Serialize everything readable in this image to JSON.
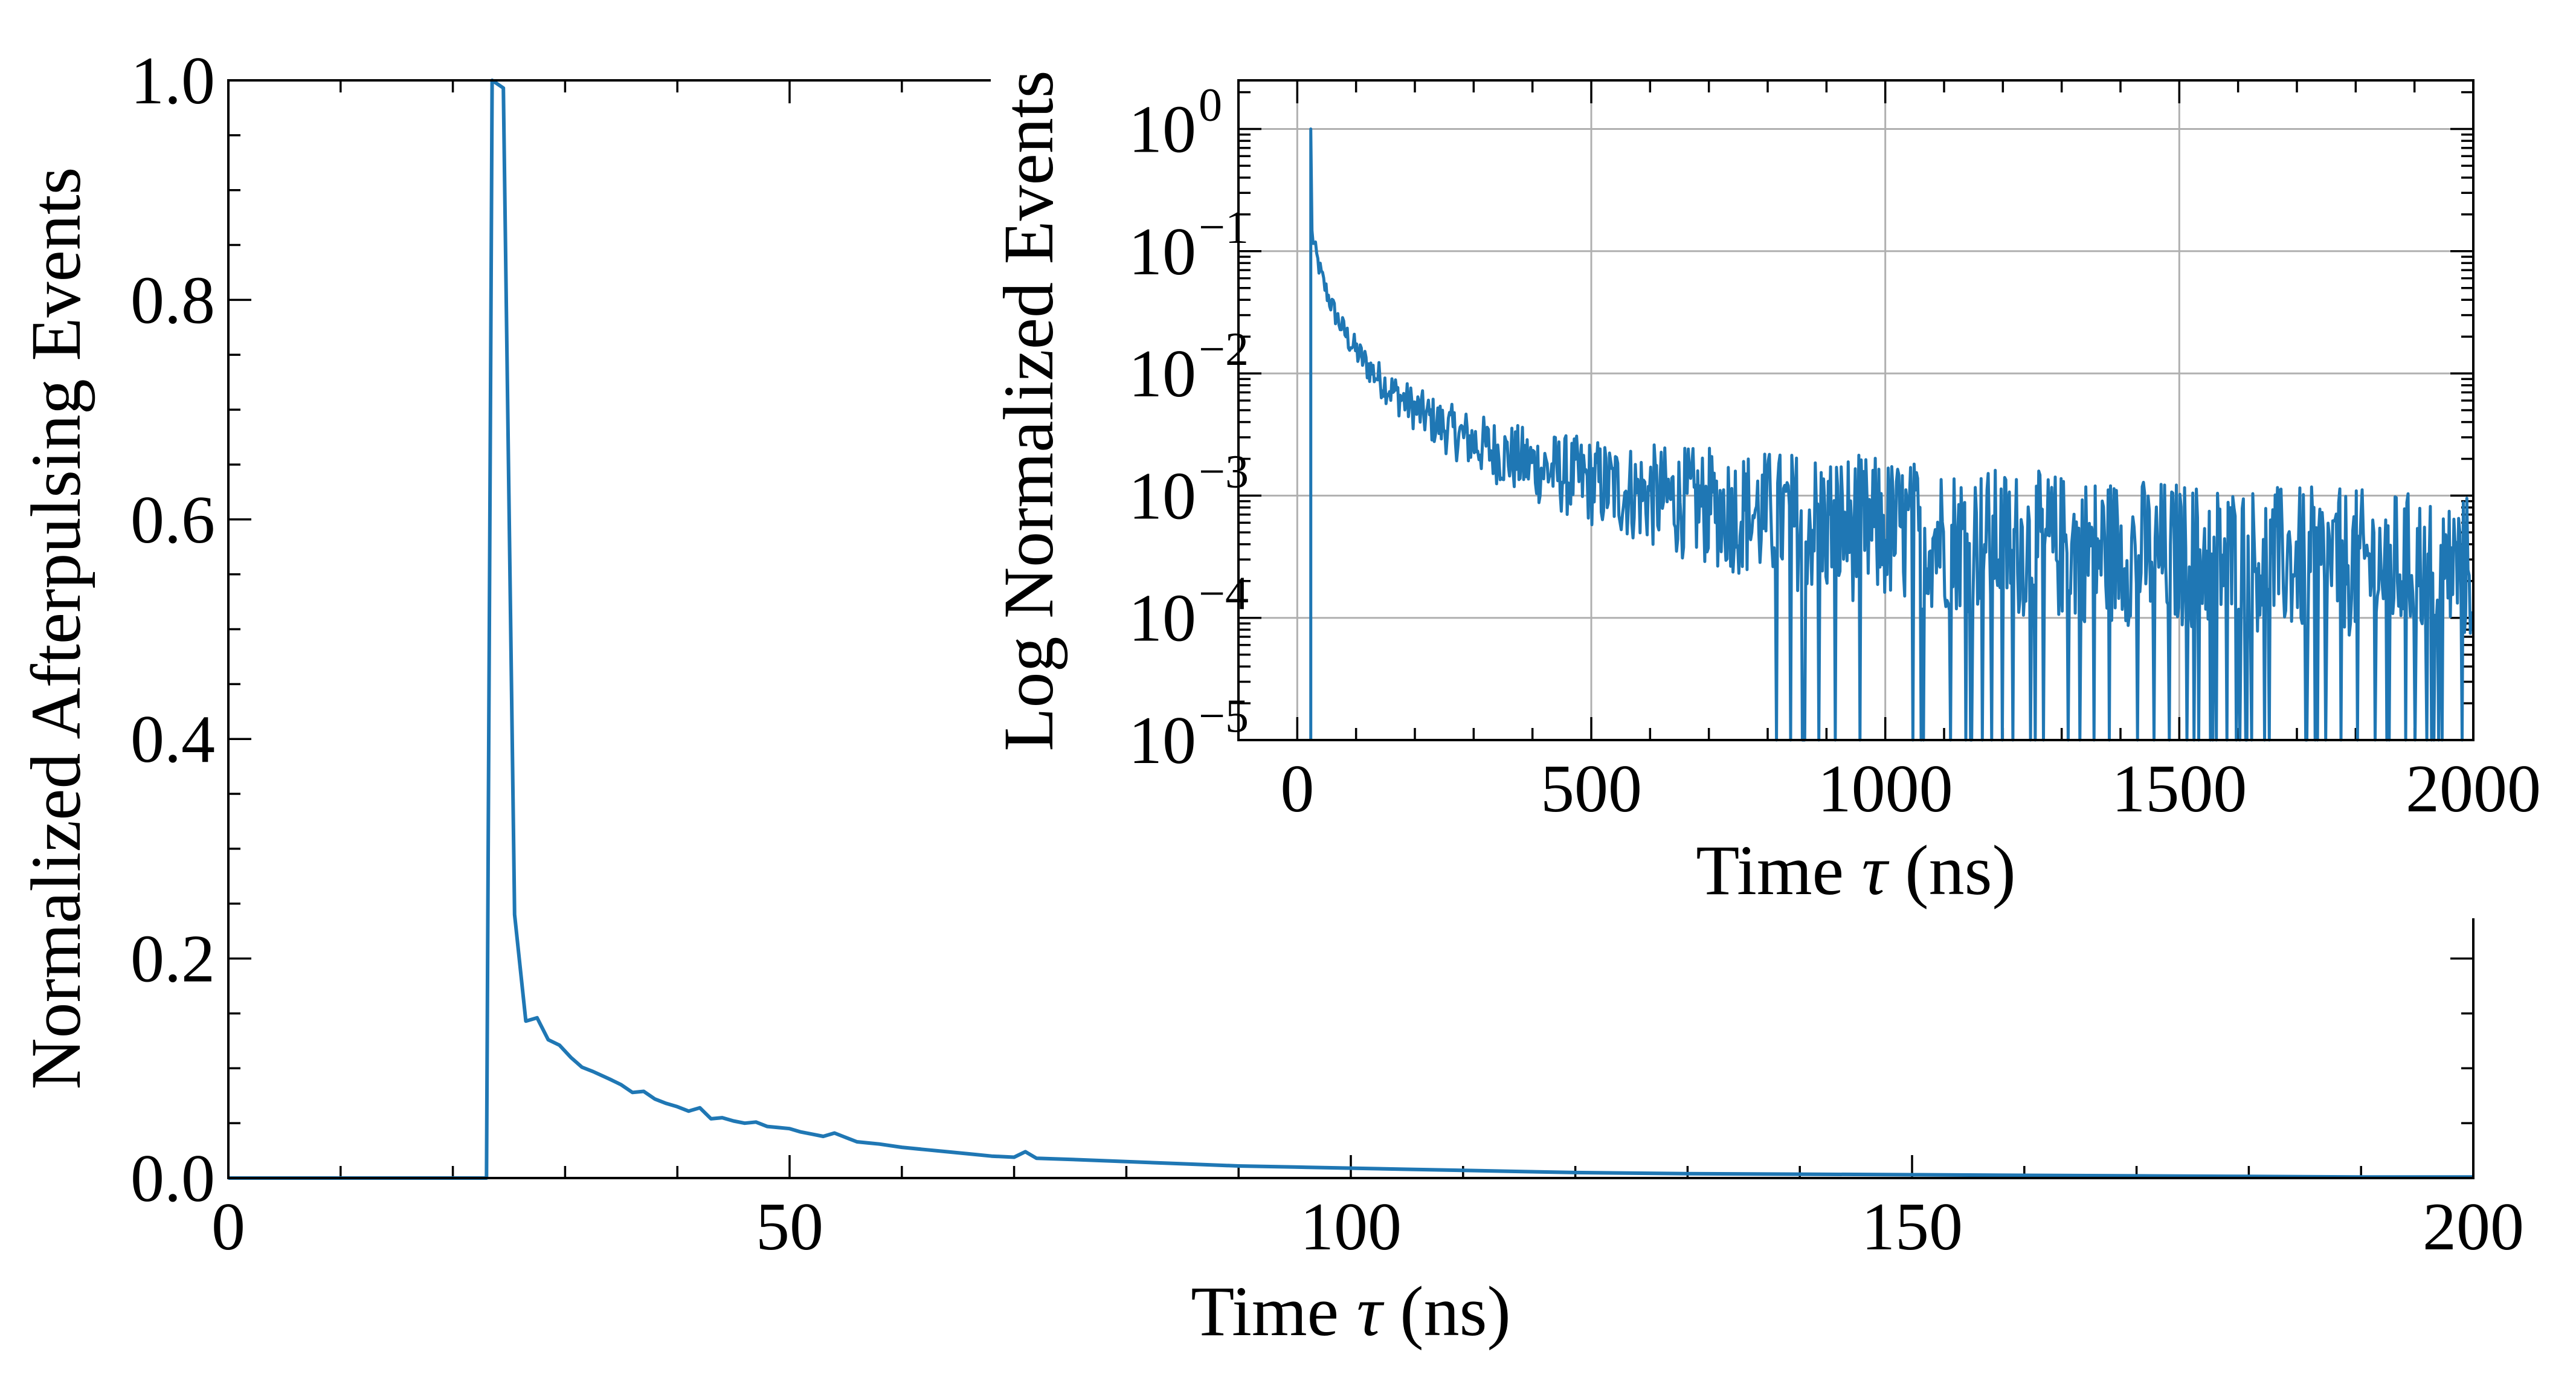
{
  "chart_data": [
    {
      "id": "main",
      "type": "line",
      "xlabel_prefix": "Time ",
      "xlabel_symbol": "τ",
      "xlabel_suffix": " (ns)",
      "ylabel": "Normalized Afterpulsing Events",
      "xlim": [
        0,
        200
      ],
      "ylim": [
        0,
        1.0
      ],
      "xticks": [
        0,
        50,
        100,
        150,
        200
      ],
      "xtick_labels": [
        "0",
        "50",
        "100",
        "150",
        "200"
      ],
      "yticks": [
        0.0,
        0.2,
        0.4,
        0.6,
        0.8,
        1.0
      ],
      "ytick_labels": [
        "0.0",
        "0.2",
        "0.4",
        "0.6",
        "0.8",
        "1.0"
      ],
      "grid": false,
      "series": [
        {
          "color": "#1f77b4",
          "x": [
            0,
            22.5,
            23.0,
            23.5,
            24.5,
            25.5,
            26.5,
            27.5,
            28.5,
            29.5,
            30.5,
            31.5,
            32.5,
            34,
            35,
            36,
            37,
            38,
            39,
            40,
            41,
            42,
            43,
            44,
            45,
            46,
            47,
            48,
            49,
            50,
            51,
            52,
            53,
            54,
            55,
            56,
            57,
            58,
            60,
            62,
            64,
            66,
            68,
            70,
            71,
            72,
            75,
            80,
            85,
            90,
            95,
            100,
            105,
            110,
            115,
            120,
            130,
            140,
            150,
            160,
            170,
            180,
            190,
            200
          ],
          "y": [
            0,
            0,
            0.0,
            1.0,
            0.993,
            0.24,
            0.143,
            0.146,
            0.126,
            0.121,
            0.11,
            0.101,
            0.097,
            0.09,
            0.085,
            0.078,
            0.079,
            0.072,
            0.068,
            0.065,
            0.061,
            0.064,
            0.054,
            0.055,
            0.052,
            0.05,
            0.051,
            0.047,
            0.046,
            0.045,
            0.042,
            0.04,
            0.038,
            0.041,
            0.037,
            0.033,
            0.032,
            0.031,
            0.028,
            0.026,
            0.024,
            0.022,
            0.02,
            0.019,
            0.024,
            0.018,
            0.017,
            0.015,
            0.013,
            0.011,
            0.01,
            0.009,
            0.008,
            0.007,
            0.006,
            0.005,
            0.004,
            0.0035,
            0.003,
            0.0025,
            0.002,
            0.0015,
            0.001,
            0.001
          ]
        }
      ]
    },
    {
      "id": "inset",
      "type": "line",
      "xlabel_prefix": "Time ",
      "xlabel_symbol": "τ",
      "xlabel_suffix": " (ns)",
      "ylabel": "Log Normalized Events",
      "xlim": [
        -100,
        2000
      ],
      "ylim": [
        1e-05,
        2.5
      ],
      "yscale": "log",
      "xticks": [
        0,
        500,
        1000,
        1500,
        2000
      ],
      "xtick_labels": [
        "0",
        "500",
        "1000",
        "1500",
        "2000"
      ],
      "yticks_exponents": [
        0,
        -1,
        -2,
        -3,
        -4,
        -5
      ],
      "ytick_base": "10",
      "grid": true,
      "series": [
        {
          "color": "#1f77b4",
          "trend": "y = 0.14*(x/25)^(-1.6) + 0.00013, peak 1.0 at x=23, with multiplicative noise and dropouts below 1e-5 beyond ~800 ns",
          "x_start": 23,
          "x_end": 2000,
          "peak": 1.0
        }
      ]
    }
  ]
}
